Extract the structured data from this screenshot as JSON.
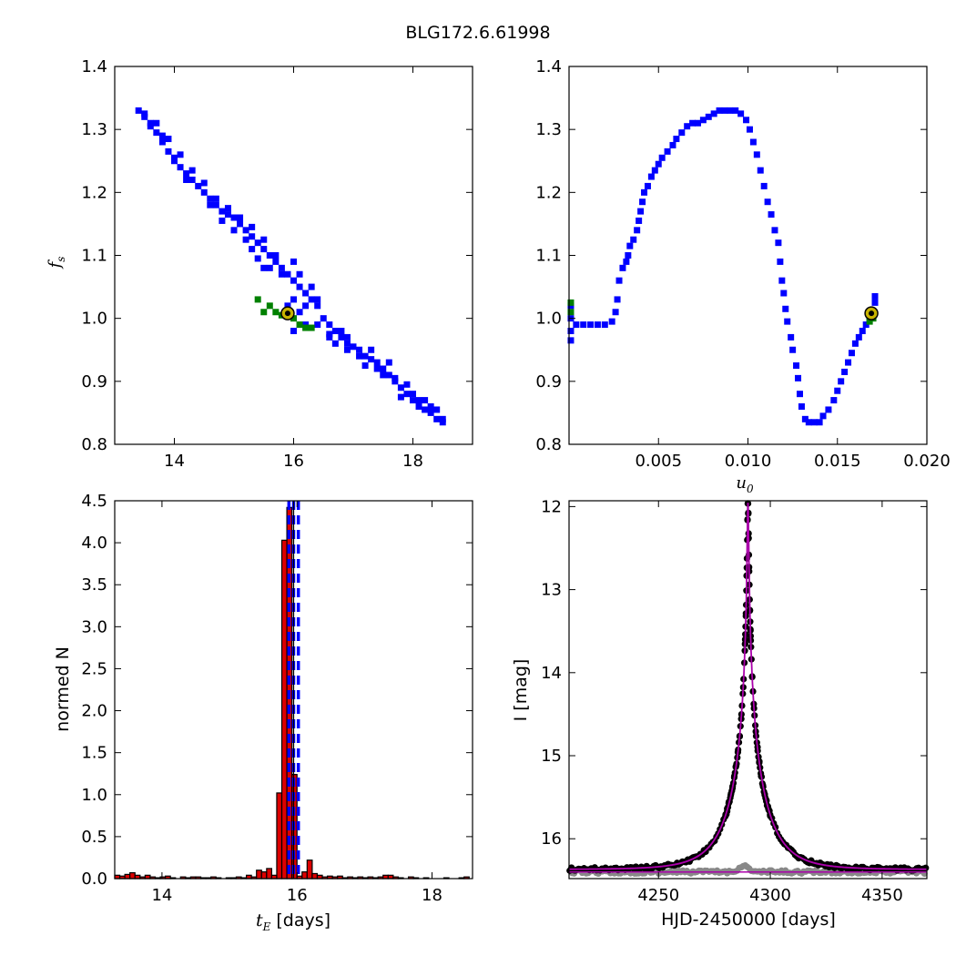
{
  "figure_title": "BLG172.6.61998",
  "chart_data": [
    {
      "id": "fs_vs_tE",
      "type": "scatter",
      "title": "",
      "xlabel": "",
      "ylabel_symbol": "f",
      "ylabel_sub": "s",
      "xlim": [
        13.0,
        19.0
      ],
      "ylim": [
        0.8,
        1.4
      ],
      "xticks": [
        "14",
        "16",
        "18"
      ],
      "xtick_values": [
        14,
        16,
        18
      ],
      "yticks": [
        "0.8",
        "0.9",
        "1.0",
        "1.1",
        "1.2",
        "1.3",
        "1.4"
      ],
      "ytick_values": [
        0.8,
        0.9,
        1.0,
        1.1,
        1.2,
        1.3,
        1.4
      ],
      "colors": {
        "contour_outer": "#0000ff",
        "contour_inner": "#008000",
        "best_fit_fill": "#c8b400"
      },
      "contour_outer": [
        [
          13.4,
          1.33
        ],
        [
          13.5,
          1.32
        ],
        [
          13.6,
          1.31
        ],
        [
          13.7,
          1.295
        ],
        [
          13.8,
          1.28
        ],
        [
          13.9,
          1.265
        ],
        [
          14.0,
          1.25
        ],
        [
          14.1,
          1.24
        ],
        [
          14.2,
          1.23
        ],
        [
          14.3,
          1.22
        ],
        [
          14.4,
          1.21
        ],
        [
          14.5,
          1.2
        ],
        [
          14.6,
          1.19
        ],
        [
          14.7,
          1.18
        ],
        [
          14.8,
          1.17
        ],
        [
          14.9,
          1.165
        ],
        [
          15.0,
          1.16
        ],
        [
          15.1,
          1.15
        ],
        [
          15.2,
          1.14
        ],
        [
          15.3,
          1.13
        ],
        [
          15.4,
          1.12
        ],
        [
          15.5,
          1.11
        ],
        [
          15.6,
          1.1
        ],
        [
          15.7,
          1.09
        ],
        [
          15.8,
          1.08
        ],
        [
          15.9,
          1.07
        ],
        [
          16.0,
          1.06
        ],
        [
          16.1,
          1.05
        ],
        [
          16.2,
          1.04
        ],
        [
          16.3,
          1.03
        ],
        [
          16.4,
          1.02
        ],
        [
          16.5,
          1.0
        ],
        [
          16.6,
          0.99
        ],
        [
          16.7,
          0.98
        ],
        [
          16.8,
          0.97
        ],
        [
          16.9,
          0.96
        ],
        [
          17.0,
          0.955
        ],
        [
          17.1,
          0.95
        ],
        [
          17.2,
          0.94
        ],
        [
          17.3,
          0.935
        ],
        [
          17.4,
          0.93
        ],
        [
          17.5,
          0.92
        ],
        [
          17.6,
          0.91
        ],
        [
          17.7,
          0.9
        ],
        [
          17.8,
          0.89
        ],
        [
          17.9,
          0.88
        ],
        [
          18.0,
          0.87
        ],
        [
          18.1,
          0.86
        ],
        [
          18.2,
          0.855
        ],
        [
          18.3,
          0.85
        ],
        [
          18.4,
          0.84
        ],
        [
          18.5,
          0.835
        ],
        [
          13.5,
          1.325
        ],
        [
          13.7,
          1.31
        ],
        [
          13.9,
          1.285
        ],
        [
          14.1,
          1.26
        ],
        [
          14.3,
          1.235
        ],
        [
          14.5,
          1.215
        ],
        [
          14.7,
          1.19
        ],
        [
          14.9,
          1.175
        ],
        [
          15.1,
          1.16
        ],
        [
          15.3,
          1.145
        ],
        [
          15.5,
          1.125
        ],
        [
          15.7,
          1.1
        ],
        [
          15.6,
          1.08
        ],
        [
          15.8,
          1.07
        ],
        [
          16.0,
          1.09
        ],
        [
          16.1,
          1.07
        ],
        [
          16.3,
          1.05
        ],
        [
          16.4,
          1.03
        ],
        [
          15.9,
          1.02
        ],
        [
          16.1,
          1.01
        ],
        [
          16.2,
          0.99
        ],
        [
          16.0,
          0.98
        ],
        [
          16.4,
          0.99
        ],
        [
          16.6,
          0.97
        ],
        [
          16.8,
          0.98
        ],
        [
          16.9,
          0.95
        ],
        [
          17.1,
          0.94
        ],
        [
          17.3,
          0.95
        ],
        [
          17.4,
          0.92
        ],
        [
          17.6,
          0.93
        ],
        [
          17.7,
          0.905
        ],
        [
          17.9,
          0.895
        ],
        [
          18.0,
          0.88
        ],
        [
          18.2,
          0.87
        ],
        [
          18.4,
          0.855
        ],
        [
          18.5,
          0.84
        ],
        [
          15.3,
          1.11
        ],
        [
          15.5,
          1.08
        ],
        [
          15.4,
          1.095
        ],
        [
          16.0,
          1.03
        ],
        [
          16.2,
          1.02
        ],
        [
          16.6,
          0.975
        ],
        [
          16.7,
          0.96
        ],
        [
          16.9,
          0.97
        ],
        [
          17.2,
          0.925
        ],
        [
          17.5,
          0.91
        ],
        [
          17.8,
          0.875
        ],
        [
          18.1,
          0.87
        ],
        [
          18.3,
          0.86
        ],
        [
          14.6,
          1.18
        ],
        [
          14.2,
          1.22
        ],
        [
          14.0,
          1.255
        ],
        [
          13.8,
          1.29
        ],
        [
          13.6,
          1.305
        ],
        [
          15.2,
          1.125
        ],
        [
          15.0,
          1.14
        ],
        [
          14.8,
          1.155
        ]
      ],
      "contour_inner": [
        [
          15.4,
          1.03
        ],
        [
          15.6,
          1.02
        ],
        [
          15.7,
          1.01
        ],
        [
          15.8,
          1.005
        ],
        [
          16.1,
          0.99
        ],
        [
          16.2,
          0.985
        ],
        [
          16.3,
          0.985
        ],
        [
          15.5,
          1.01
        ],
        [
          16.0,
          1.0
        ]
      ],
      "best_fit": {
        "x": 15.9,
        "y": 1.008
      }
    },
    {
      "id": "fs_vs_u0",
      "type": "scatter",
      "title": "",
      "xlabel_symbol": "u",
      "xlabel_sub": "0",
      "ylabel": "",
      "xlim": [
        0.0,
        0.02
      ],
      "ylim": [
        0.8,
        1.4
      ],
      "xticks": [
        "0.005",
        "0.010",
        "0.015",
        "0.020"
      ],
      "xtick_values": [
        0.005,
        0.01,
        0.015,
        0.02
      ],
      "yticks": [
        "0.8",
        "0.9",
        "1.0",
        "1.1",
        "1.2",
        "1.3",
        "1.4"
      ],
      "ytick_values": [
        0.8,
        0.9,
        1.0,
        1.1,
        1.2,
        1.3,
        1.4
      ],
      "colors": {
        "contour_outer": "#0000ff",
        "contour_inner": "#008000",
        "best_fit_fill": "#c8b400"
      },
      "contour_outer": [
        [
          0.0001,
          0.965
        ],
        [
          0.0001,
          0.98
        ],
        [
          0.0001,
          1.0
        ],
        [
          0.0001,
          1.02
        ],
        [
          0.0004,
          0.99
        ],
        [
          0.0008,
          0.99
        ],
        [
          0.0012,
          0.99
        ],
        [
          0.0016,
          0.99
        ],
        [
          0.002,
          0.99
        ],
        [
          0.0024,
          0.995
        ],
        [
          0.0026,
          1.01
        ],
        [
          0.0027,
          1.03
        ],
        [
          0.0028,
          1.06
        ],
        [
          0.003,
          1.08
        ],
        [
          0.0032,
          1.09
        ],
        [
          0.0033,
          1.1
        ],
        [
          0.0034,
          1.115
        ],
        [
          0.0036,
          1.125
        ],
        [
          0.0038,
          1.14
        ],
        [
          0.0039,
          1.155
        ],
        [
          0.004,
          1.17
        ],
        [
          0.0041,
          1.185
        ],
        [
          0.0042,
          1.2
        ],
        [
          0.0044,
          1.21
        ],
        [
          0.0046,
          1.225
        ],
        [
          0.0048,
          1.235
        ],
        [
          0.005,
          1.245
        ],
        [
          0.0052,
          1.255
        ],
        [
          0.0055,
          1.265
        ],
        [
          0.0058,
          1.275
        ],
        [
          0.006,
          1.285
        ],
        [
          0.0063,
          1.295
        ],
        [
          0.0066,
          1.305
        ],
        [
          0.0069,
          1.31
        ],
        [
          0.0072,
          1.31
        ],
        [
          0.0075,
          1.315
        ],
        [
          0.0078,
          1.32
        ],
        [
          0.0081,
          1.325
        ],
        [
          0.0084,
          1.33
        ],
        [
          0.0087,
          1.33
        ],
        [
          0.009,
          1.33
        ],
        [
          0.0093,
          1.33
        ],
        [
          0.0096,
          1.325
        ],
        [
          0.0099,
          1.315
        ],
        [
          0.0101,
          1.3
        ],
        [
          0.0103,
          1.28
        ],
        [
          0.0105,
          1.26
        ],
        [
          0.0107,
          1.235
        ],
        [
          0.0109,
          1.21
        ],
        [
          0.0111,
          1.185
        ],
        [
          0.0113,
          1.165
        ],
        [
          0.0115,
          1.14
        ],
        [
          0.0117,
          1.12
        ],
        [
          0.0118,
          1.09
        ],
        [
          0.0119,
          1.06
        ],
        [
          0.012,
          1.04
        ],
        [
          0.0121,
          1.015
        ],
        [
          0.0122,
          0.995
        ],
        [
          0.0124,
          0.97
        ],
        [
          0.0125,
          0.95
        ],
        [
          0.0127,
          0.925
        ],
        [
          0.0128,
          0.905
        ],
        [
          0.0129,
          0.88
        ],
        [
          0.013,
          0.86
        ],
        [
          0.0132,
          0.84
        ],
        [
          0.0134,
          0.835
        ],
        [
          0.0137,
          0.835
        ],
        [
          0.014,
          0.835
        ],
        [
          0.0142,
          0.845
        ],
        [
          0.0145,
          0.855
        ],
        [
          0.0148,
          0.87
        ],
        [
          0.015,
          0.885
        ],
        [
          0.0152,
          0.9
        ],
        [
          0.0154,
          0.915
        ],
        [
          0.0156,
          0.93
        ],
        [
          0.0158,
          0.945
        ],
        [
          0.016,
          0.96
        ],
        [
          0.0162,
          0.97
        ],
        [
          0.0164,
          0.98
        ],
        [
          0.0166,
          0.99
        ],
        [
          0.0168,
          1.0
        ],
        [
          0.017,
          1.01
        ],
        [
          0.0171,
          1.025
        ],
        [
          0.0171,
          1.035
        ]
      ],
      "contour_inner": [
        [
          0.0001,
          1.025
        ],
        [
          0.0001,
          1.01
        ],
        [
          0.0168,
          0.995
        ],
        [
          0.017,
          1.0
        ]
      ],
      "best_fit": {
        "x": 0.0169,
        "y": 1.008
      }
    },
    {
      "id": "tE_histogram",
      "type": "bar",
      "title": "",
      "xlabel_symbol": "t",
      "xlabel_sub": "E",
      "xlabel_suffix": "[days]",
      "ylabel": "normed N",
      "xlim": [
        13.3,
        18.6
      ],
      "ylim": [
        0.0,
        4.5
      ],
      "xticks": [
        "14",
        "16",
        "18"
      ],
      "xtick_values": [
        14,
        16,
        18
      ],
      "yticks": [
        "0.0",
        "0.5",
        "1.0",
        "1.5",
        "2.0",
        "2.5",
        "3.0",
        "3.5",
        "4.0",
        "4.5"
      ],
      "ytick_values": [
        0.0,
        0.5,
        1.0,
        1.5,
        2.0,
        2.5,
        3.0,
        3.5,
        4.0,
        4.5
      ],
      "bin_width": 0.075,
      "bin_starts": [
        13.3,
        13.375,
        13.45,
        13.525,
        13.6,
        13.675,
        13.75,
        13.825,
        13.9,
        13.975,
        14.05,
        14.125,
        14.2,
        14.275,
        14.35,
        14.425,
        14.5,
        14.575,
        14.65,
        14.725,
        14.8,
        14.875,
        14.95,
        15.025,
        15.1,
        15.175,
        15.25,
        15.325,
        15.4,
        15.475,
        15.55,
        15.625,
        15.7,
        15.775,
        15.85,
        15.925,
        16.0,
        16.075,
        16.15,
        16.225,
        16.3,
        16.375,
        16.45,
        16.525,
        16.6,
        16.675,
        16.75,
        16.825,
        16.9,
        16.975,
        17.05,
        17.125,
        17.2,
        17.275,
        17.35,
        17.425,
        17.5,
        17.575,
        17.65,
        17.725,
        17.8,
        17.875,
        17.95,
        18.025,
        18.1,
        18.175,
        18.25,
        18.325,
        18.4,
        18.475
      ],
      "values": [
        0.04,
        0.03,
        0.05,
        0.07,
        0.04,
        0.02,
        0.04,
        0.02,
        0.01,
        0.02,
        0.03,
        0.01,
        0.0,
        0.02,
        0.01,
        0.02,
        0.02,
        0.01,
        0.01,
        0.02,
        0.01,
        0.0,
        0.01,
        0.01,
        0.02,
        0.01,
        0.04,
        0.02,
        0.1,
        0.08,
        0.12,
        0.04,
        1.02,
        4.03,
        4.42,
        1.24,
        0.03,
        0.08,
        0.22,
        0.06,
        0.04,
        0.02,
        0.03,
        0.02,
        0.03,
        0.01,
        0.02,
        0.01,
        0.02,
        0.01,
        0.02,
        0.01,
        0.02,
        0.04,
        0.04,
        0.02,
        0.01,
        0.0,
        0.02,
        0.01,
        0.0,
        0.01,
        0.0,
        0.0,
        0.0,
        0.01,
        0.0,
        0.0,
        0.01,
        0.02
      ],
      "vlines_dashed": [
        15.88,
        15.95,
        16.02
      ],
      "vline_solid": 15.95,
      "colors": {
        "bar": "#dd0000",
        "dashed": "#0000ff",
        "solid": "#000000"
      }
    },
    {
      "id": "light_curve",
      "type": "scatter",
      "title": "",
      "xlabel": "HJD-2450000 [days]",
      "ylabel": "I [mag]",
      "xlim": [
        4210,
        4370
      ],
      "ylim": [
        16.48,
        11.93
      ],
      "y_inverted": true,
      "xticks": [
        "4250",
        "4300",
        "4350"
      ],
      "xtick_values": [
        4250,
        4300,
        4350
      ],
      "yticks": [
        "12",
        "13",
        "14",
        "15",
        "16"
      ],
      "ytick_values": [
        12,
        13,
        14,
        15,
        16
      ],
      "model": {
        "t0": 4290.0,
        "tE": 15.95,
        "u0": 0.0169,
        "I_base": 16.37,
        "fs": 1.008
      },
      "colors": {
        "data": "#000000",
        "residual": "#888888",
        "model": "#aa00aa"
      }
    }
  ]
}
